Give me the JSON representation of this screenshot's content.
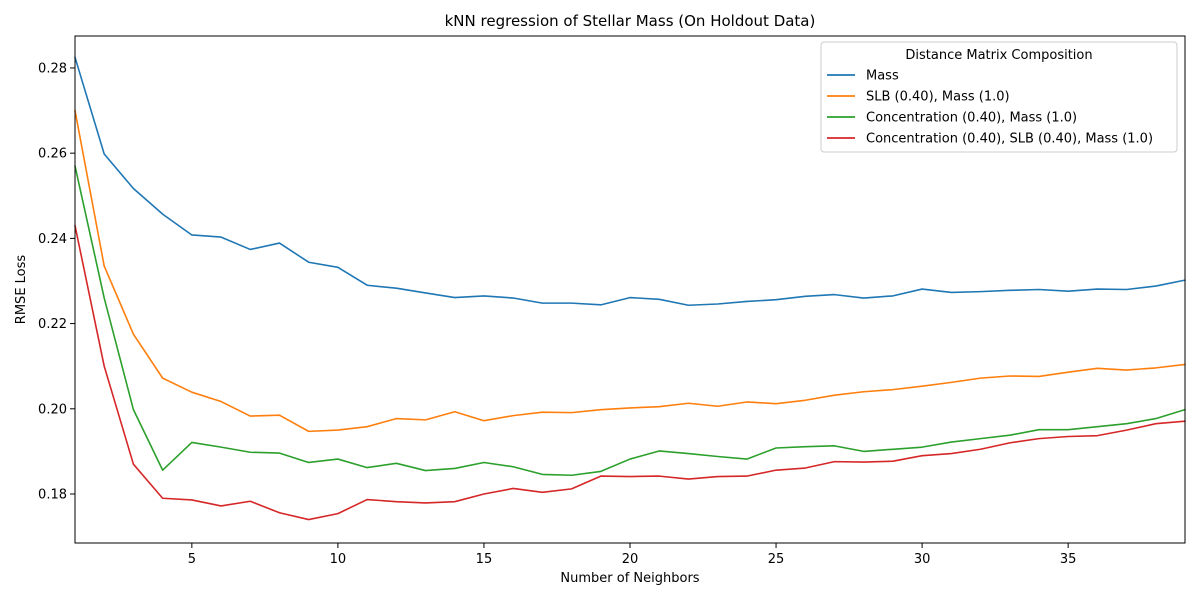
{
  "chart_data": {
    "type": "line",
    "title": "kNN regression of Stellar Mass (On Holdout Data)",
    "xlabel": "Number of Neighbors",
    "ylabel": "RMSE Loss",
    "xlim": [
      1,
      39
    ],
    "ylim": [
      0.1685,
      0.2875
    ],
    "xticks": [
      5,
      10,
      15,
      20,
      25,
      30,
      35
    ],
    "yticks": [
      0.18,
      0.2,
      0.22,
      0.24,
      0.26,
      0.28
    ],
    "grid": false,
    "legend": {
      "title": "Distance Matrix Composition",
      "placement": "top-right"
    },
    "x": [
      1,
      2,
      3,
      4,
      5,
      6,
      7,
      8,
      9,
      10,
      11,
      12,
      13,
      14,
      15,
      16,
      17,
      18,
      19,
      20,
      21,
      22,
      23,
      24,
      25,
      26,
      27,
      28,
      29,
      30,
      31,
      32,
      33,
      34,
      35,
      36,
      37,
      38,
      39
    ],
    "series": [
      {
        "name": "Mass",
        "color": "#1f77b4",
        "values": [
          0.2825,
          0.2598,
          0.2517,
          0.2457,
          0.2408,
          0.2403,
          0.2374,
          0.2389,
          0.2344,
          0.2332,
          0.229,
          0.2283,
          0.2272,
          0.2261,
          0.2265,
          0.226,
          0.2248,
          0.2248,
          0.2244,
          0.2261,
          0.2257,
          0.2243,
          0.2246,
          0.2252,
          0.2256,
          0.2264,
          0.2268,
          0.226,
          0.2265,
          0.2281,
          0.2273,
          0.2275,
          0.2278,
          0.228,
          0.2276,
          0.2281,
          0.228,
          0.2288,
          0.2302
        ]
      },
      {
        "name": "SLB (0.40), Mass (1.0)",
        "color": "#ff7f0e",
        "values": [
          0.27,
          0.2335,
          0.2175,
          0.2072,
          0.2039,
          0.2017,
          0.1983,
          0.1985,
          0.1947,
          0.195,
          0.1958,
          0.1977,
          0.1974,
          0.1993,
          0.1972,
          0.1984,
          0.1992,
          0.1991,
          0.1998,
          0.2002,
          0.2005,
          0.2013,
          0.2006,
          0.2016,
          0.2012,
          0.202,
          0.2032,
          0.204,
          0.2045,
          0.2053,
          0.2062,
          0.2072,
          0.2077,
          0.2076,
          0.2086,
          0.2095,
          0.2091,
          0.2096,
          0.2104
        ]
      },
      {
        "name": "Concentration (0.40), Mass (1.0)",
        "color": "#2ca02c",
        "values": [
          0.257,
          0.226,
          0.1998,
          0.1856,
          0.1921,
          0.191,
          0.1898,
          0.1896,
          0.1874,
          0.1882,
          0.1862,
          0.1872,
          0.1855,
          0.186,
          0.1874,
          0.1864,
          0.1846,
          0.1844,
          0.1853,
          0.1882,
          0.1901,
          0.1895,
          0.1888,
          0.1882,
          0.1908,
          0.1911,
          0.1913,
          0.19,
          0.1905,
          0.191,
          0.1922,
          0.193,
          0.1938,
          0.1951,
          0.1951,
          0.1958,
          0.1965,
          0.1977,
          0.1998
        ]
      },
      {
        "name": "Concentration (0.40), SLB (0.40), Mass (1.0)",
        "color": "#d62728",
        "values": [
          0.243,
          0.21,
          0.187,
          0.179,
          0.1786,
          0.1772,
          0.1783,
          0.1756,
          0.174,
          0.1754,
          0.1787,
          0.1782,
          0.1779,
          0.1782,
          0.18,
          0.1813,
          0.1804,
          0.1812,
          0.1842,
          0.1841,
          0.1842,
          0.1835,
          0.1841,
          0.1842,
          0.1856,
          0.1861,
          0.1876,
          0.1875,
          0.1877,
          0.189,
          0.1895,
          0.1905,
          0.192,
          0.193,
          0.1935,
          0.1937,
          0.195,
          0.1965,
          0.1971
        ]
      }
    ]
  }
}
